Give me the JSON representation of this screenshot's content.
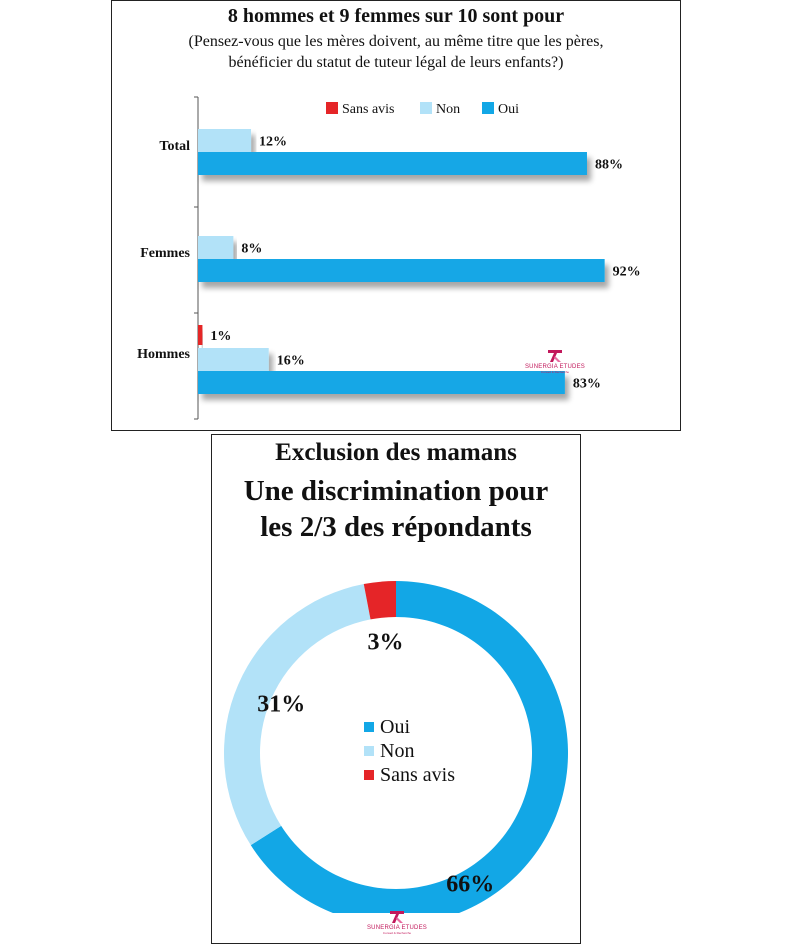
{
  "colors": {
    "oui": "#12a7e6",
    "non": "#b2e2f8",
    "sans_avis": "#e52528",
    "logo": "#c2185b"
  },
  "logo": {
    "name": "SUNERGIA ETUDES",
    "sub": "Conseil & Recherche"
  },
  "chart_data": [
    {
      "type": "bar",
      "orientation": "horizontal",
      "title": "8 hommes et 9 femmes sur 10 sont pour",
      "subtitle": [
        "(Pensez-vous que les mères doivent, au même titre que les pères,",
        "bénéficier du statut de tuteur légal  de leurs enfants?)"
      ],
      "legend": {
        "position": "top",
        "entries": [
          "Sans avis",
          "Non",
          "Oui"
        ]
      },
      "categories": [
        "Total",
        "Femmes",
        "Hommes"
      ],
      "series": [
        {
          "name": "Sans avis",
          "values": [
            null,
            null,
            1
          ],
          "labels": [
            "",
            "",
            "1%"
          ]
        },
        {
          "name": "Non",
          "values": [
            12,
            8,
            16
          ],
          "labels": [
            "12%",
            "8%",
            "16%"
          ]
        },
        {
          "name": "Oui",
          "values": [
            88,
            92,
            83
          ],
          "labels": [
            "88%",
            "92%",
            "83%"
          ]
        }
      ],
      "xlim": [
        0,
        100
      ]
    },
    {
      "type": "pie",
      "donut": true,
      "title": [
        "Exclusion des mamans",
        "Une discrimination pour",
        "les 2/3 des répondants"
      ],
      "legend": {
        "position": "center",
        "entries": [
          "Oui",
          "Non",
          "Sans avis"
        ]
      },
      "slices": [
        {
          "name": "Oui",
          "value": 66,
          "label": "66%"
        },
        {
          "name": "Non",
          "value": 31,
          "label": "31%"
        },
        {
          "name": "Sans avis",
          "value": 3,
          "label": "3%"
        }
      ]
    }
  ]
}
